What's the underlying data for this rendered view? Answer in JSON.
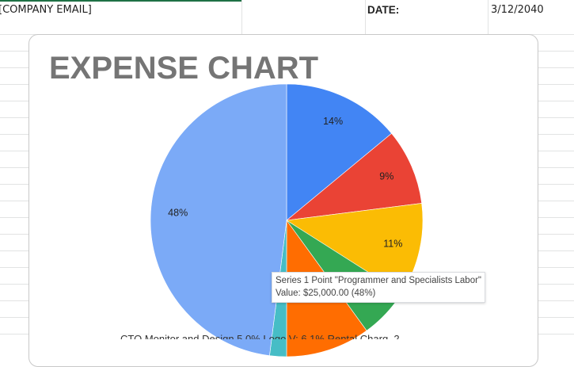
{
  "header": {
    "email_placeholder": "[COMPANY EMAIL]",
    "date_label": "DATE:",
    "date_value": "3/12/2040"
  },
  "chart": {
    "title": "EXPENSE CHART",
    "legend_partial": "CTO Monitor and Design 5.0%  Logo V: 6.1%  Rental Charg. 2..."
  },
  "tooltip": {
    "line1": "Series 1 Point \"Programmer and Specialists Labor\"",
    "line2": "Value: $25,000.00 (48%)"
  },
  "chart_data": {
    "type": "pie",
    "title": "EXPENSE CHART",
    "slices": [
      {
        "label": "14%",
        "value": 14,
        "color": "#4285f4"
      },
      {
        "label": "9%",
        "value": 9,
        "color": "#ea4335"
      },
      {
        "label": "11%",
        "value": 11,
        "color": "#fbbc04"
      },
      {
        "label": "6%",
        "value": 6,
        "color": "#34a853"
      },
      {
        "label": "",
        "value": 10,
        "color": "#ff6d01"
      },
      {
        "label": "",
        "value": 2,
        "color": "#46bdc6"
      },
      {
        "label": "48%",
        "value": 48,
        "color": "#7baaf7",
        "name": "Programmer and Specialists Labor",
        "amount": "$25,000.00"
      }
    ]
  }
}
